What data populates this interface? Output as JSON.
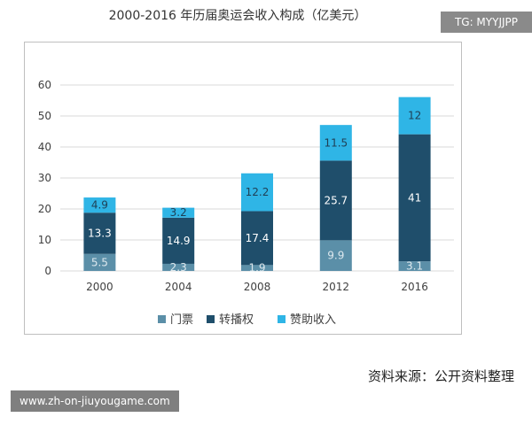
{
  "watermark_tag": "TG: MYYJJPP",
  "source_note": "资料来源：公开资料整理",
  "url_tag": "www.zh-on-jiuyougame.com",
  "chart_data": {
    "type": "bar",
    "stacked": true,
    "title": "2000-2016 年历届奥运会收入构成（亿美元）",
    "categories": [
      "2000",
      "2004",
      "2008",
      "2012",
      "2016"
    ],
    "series": [
      {
        "name": "门票",
        "values": [
          5.5,
          2.3,
          1.9,
          9.9,
          3.1
        ],
        "color": "#5b8fa8",
        "label_color": "#dde8ee"
      },
      {
        "name": "转播权",
        "values": [
          13.3,
          14.9,
          17.4,
          25.7,
          41
        ],
        "color": "#1f4e6b",
        "label_color": "#ffffff"
      },
      {
        "name": "赞助收入",
        "values": [
          4.9,
          3.2,
          12.2,
          11.5,
          12
        ],
        "color": "#2fb5e6",
        "label_color": "#1f3f55"
      }
    ],
    "ylim": [
      0,
      60
    ],
    "yticks": [
      0,
      10,
      20,
      30,
      40,
      50,
      60
    ],
    "grid": true,
    "legend_position": "bottom"
  }
}
